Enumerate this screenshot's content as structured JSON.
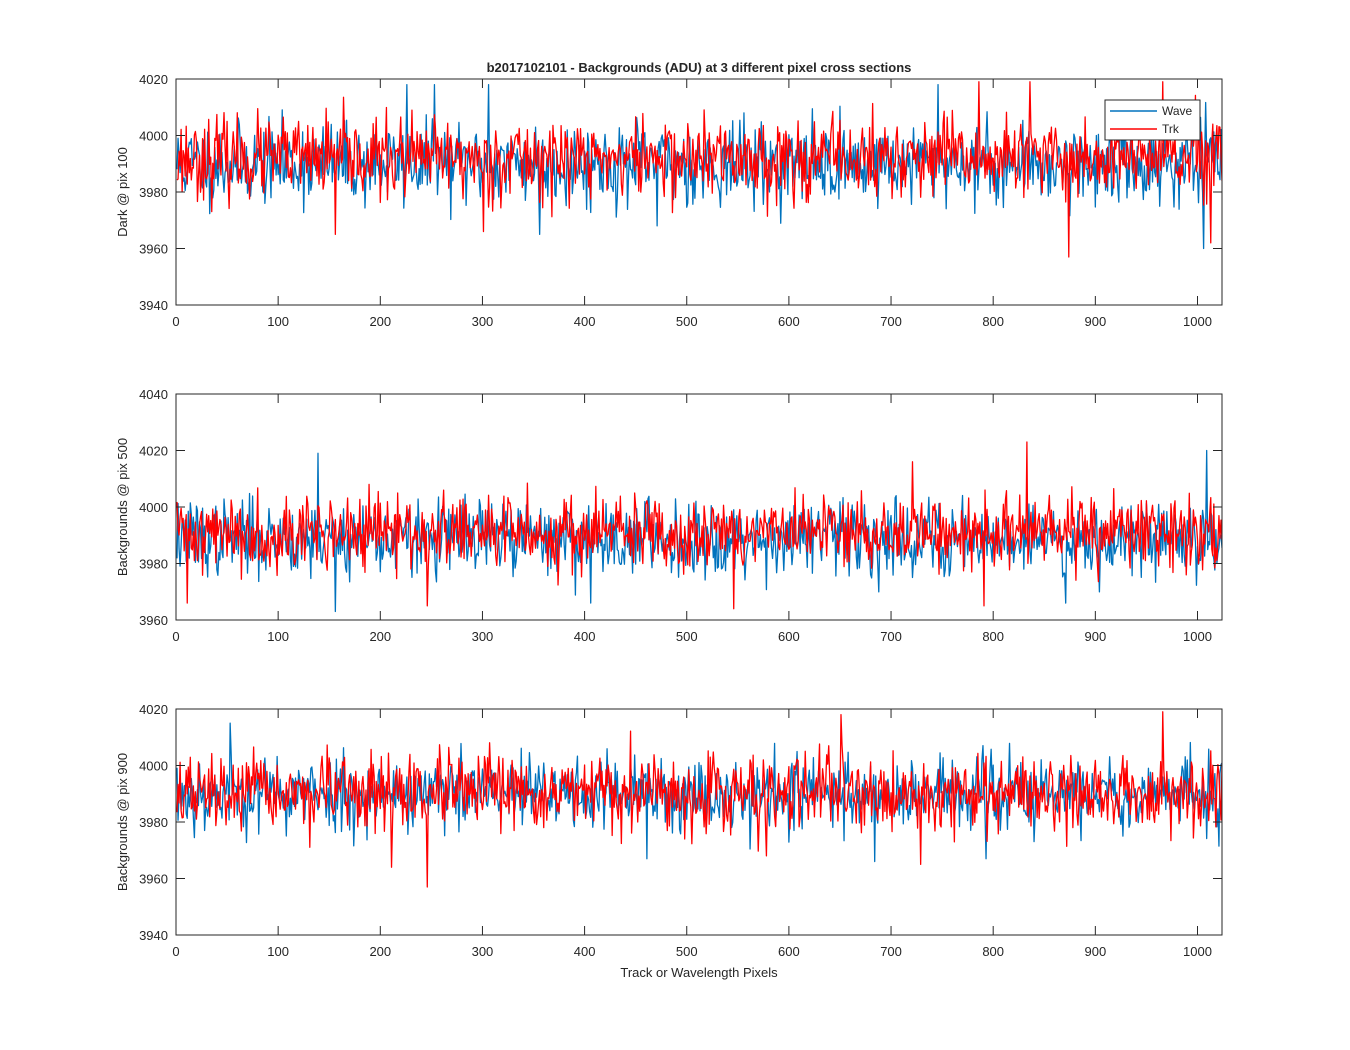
{
  "colors": {
    "wave": "#0072BD",
    "trk": "#FF0000",
    "axis": "#262626",
    "background": "#FFFFFF"
  },
  "chart_data": [
    {
      "type": "line",
      "title": "b2017102101 - Backgrounds (ADU) at 3 different pixel cross sections",
      "xlabel": "",
      "ylabel": "Dark @ pix 100",
      "xlim": [
        0,
        1024
      ],
      "ylim": [
        3940,
        4020
      ],
      "xticks": [
        0,
        100,
        200,
        300,
        400,
        500,
        600,
        700,
        800,
        900,
        1000
      ],
      "yticks": [
        3940,
        3960,
        3980,
        4000,
        4020
      ],
      "legend": {
        "position": "top-right",
        "entries": [
          "Wave",
          "Trk"
        ]
      },
      "series": [
        {
          "name": "Wave",
          "color": "#0072BD",
          "n_points": 1024,
          "mean": 3990,
          "std": 7,
          "seed": 11,
          "spikes": [
            [
              225,
              4018
            ],
            [
              252,
              4018
            ],
            [
              305,
              4018
            ],
            [
              355,
              3965
            ],
            [
              470,
              3968
            ],
            [
              745,
              4018
            ],
            [
              1005,
              3960
            ]
          ]
        },
        {
          "name": "Trk",
          "color": "#FF0000",
          "n_points": 1024,
          "mean": 3992,
          "std": 7,
          "seed": 23,
          "spikes": [
            [
              155,
              3965
            ],
            [
              300,
              3966
            ],
            [
              785,
              4019
            ],
            [
              835,
              4019
            ],
            [
              873,
              3957
            ],
            [
              965,
              4019
            ],
            [
              1012,
              3962
            ]
          ]
        }
      ]
    },
    {
      "type": "line",
      "title": "",
      "xlabel": "",
      "ylabel": "Backgrounds @ pix 500",
      "xlim": [
        0,
        1024
      ],
      "ylim": [
        3960,
        4040
      ],
      "xticks": [
        0,
        100,
        200,
        300,
        400,
        500,
        600,
        700,
        800,
        900,
        1000
      ],
      "yticks": [
        3960,
        3980,
        4000,
        4020,
        4040
      ],
      "series": [
        {
          "name": "Wave",
          "color": "#0072BD",
          "n_points": 1024,
          "mean": 3989,
          "std": 6.5,
          "seed": 37,
          "spikes": [
            [
              138,
              4019
            ],
            [
              155,
              3963
            ],
            [
              405,
              3966
            ],
            [
              870,
              3966
            ],
            [
              1008,
              4020
            ]
          ]
        },
        {
          "name": "Trk",
          "color": "#FF0000",
          "n_points": 1024,
          "mean": 3991,
          "std": 6.5,
          "seed": 41,
          "spikes": [
            [
              10,
              3966
            ],
            [
              245,
              3965
            ],
            [
              545,
              3964
            ],
            [
              720,
              4016
            ],
            [
              790,
              3965
            ],
            [
              832,
              4023
            ]
          ]
        }
      ]
    },
    {
      "type": "line",
      "title": "",
      "xlabel": "Track or Wavelength Pixels",
      "ylabel": "Backgrounds @ pix 900",
      "xlim": [
        0,
        1024
      ],
      "ylim": [
        3940,
        4020
      ],
      "xticks": [
        0,
        100,
        200,
        300,
        400,
        500,
        600,
        700,
        800,
        900,
        1000
      ],
      "yticks": [
        3940,
        3960,
        3980,
        4000,
        4020
      ],
      "series": [
        {
          "name": "Wave",
          "color": "#0072BD",
          "n_points": 1024,
          "mean": 3990,
          "std": 6.5,
          "seed": 53,
          "spikes": [
            [
              52,
              4015
            ],
            [
              460,
              3967
            ],
            [
              683,
              3966
            ],
            [
              792,
              3967
            ]
          ]
        },
        {
          "name": "Trk",
          "color": "#FF0000",
          "n_points": 1024,
          "mean": 3990,
          "std": 6.5,
          "seed": 67,
          "spikes": [
            [
              210,
              3964
            ],
            [
              245,
              3957
            ],
            [
              650,
              4018
            ],
            [
              728,
              3965
            ],
            [
              965,
              4019
            ]
          ]
        }
      ]
    }
  ]
}
